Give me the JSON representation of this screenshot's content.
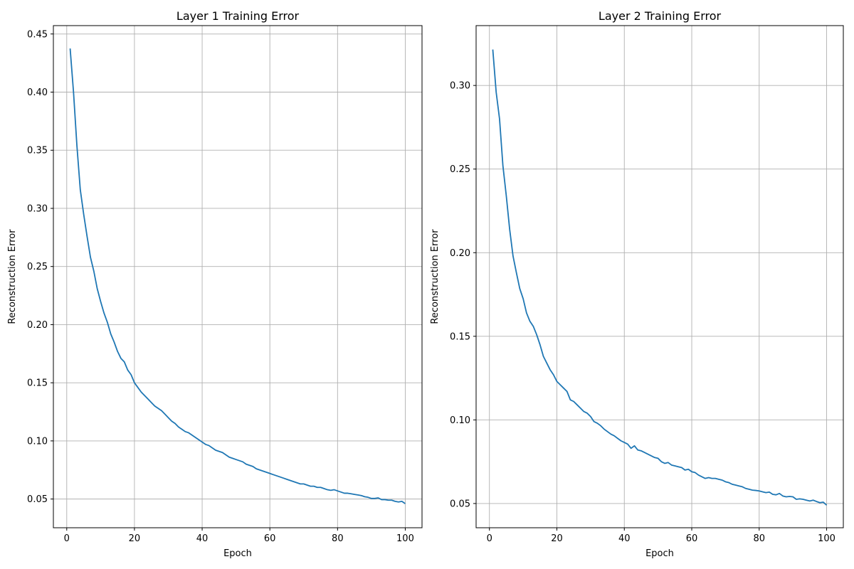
{
  "chart_data": [
    {
      "type": "line",
      "title": "Layer 1 Training Error",
      "xlabel": "Epoch",
      "ylabel": "Reconstruction Error",
      "xlim": [
        -3.95,
        104.95
      ],
      "ylim": [
        0.0253,
        0.4572
      ],
      "xticks": [
        0,
        20,
        40,
        60,
        80,
        100
      ],
      "yticks": [
        0.05,
        0.1,
        0.15,
        0.2,
        0.25,
        0.3,
        0.35,
        0.4,
        0.45
      ],
      "grid": true,
      "color": "#1f77b4",
      "x_start": 1,
      "values": [
        0.4375,
        0.4,
        0.354,
        0.316,
        0.295,
        0.276,
        0.258,
        0.246,
        0.231,
        0.22,
        0.21,
        0.202,
        0.192,
        0.185,
        0.177,
        0.171,
        0.168,
        0.161,
        0.157,
        0.15,
        0.146,
        0.142,
        0.139,
        0.136,
        0.133,
        0.13,
        0.128,
        0.126,
        0.123,
        0.12,
        0.117,
        0.115,
        0.112,
        0.11,
        0.108,
        0.107,
        0.105,
        0.103,
        0.101,
        0.099,
        0.097,
        0.096,
        0.094,
        0.092,
        0.091,
        0.09,
        0.088,
        0.086,
        0.085,
        0.084,
        0.083,
        0.082,
        0.08,
        0.079,
        0.078,
        0.076,
        0.075,
        0.074,
        0.073,
        0.072,
        0.071,
        0.07,
        0.069,
        0.068,
        0.067,
        0.066,
        0.065,
        0.064,
        0.063,
        0.063,
        0.062,
        0.061,
        0.061,
        0.06,
        0.06,
        0.059,
        0.058,
        0.0575,
        0.058,
        0.057,
        0.056,
        0.055,
        0.055,
        0.0545,
        0.054,
        0.0535,
        0.053,
        0.052,
        0.0515,
        0.0505,
        0.0505,
        0.051,
        0.0495,
        0.0495,
        0.049,
        0.049,
        0.048,
        0.0475,
        0.048,
        0.046
      ]
    },
    {
      "type": "line",
      "title": "Layer 2 Training Error",
      "xlabel": "Epoch",
      "ylabel": "Reconstruction Error",
      "xlim": [
        -3.95,
        104.95
      ],
      "ylim": [
        0.0355,
        0.3358
      ],
      "xticks": [
        0,
        20,
        40,
        60,
        80,
        100
      ],
      "yticks": [
        0.05,
        0.1,
        0.15,
        0.2,
        0.25,
        0.3
      ],
      "grid": true,
      "color": "#1f77b4",
      "x_start": 1,
      "values": [
        0.3215,
        0.296,
        0.28,
        0.252,
        0.234,
        0.214,
        0.198,
        0.188,
        0.1785,
        0.1725,
        0.164,
        0.159,
        0.156,
        0.151,
        0.145,
        0.138,
        0.134,
        0.13,
        0.127,
        0.123,
        0.121,
        0.119,
        0.117,
        0.112,
        0.111,
        0.109,
        0.107,
        0.105,
        0.104,
        0.102,
        0.099,
        0.098,
        0.0965,
        0.0945,
        0.093,
        0.0915,
        0.0905,
        0.089,
        0.0875,
        0.0865,
        0.0855,
        0.083,
        0.0845,
        0.082,
        0.0815,
        0.0805,
        0.0795,
        0.0785,
        0.0775,
        0.077,
        0.075,
        0.074,
        0.0745,
        0.073,
        0.0725,
        0.072,
        0.0715,
        0.07,
        0.0705,
        0.069,
        0.0685,
        0.067,
        0.066,
        0.065,
        0.0655,
        0.065,
        0.065,
        0.0645,
        0.064,
        0.063,
        0.0625,
        0.0615,
        0.061,
        0.0605,
        0.06,
        0.059,
        0.0585,
        0.058,
        0.0578,
        0.0575,
        0.057,
        0.0565,
        0.0568,
        0.0555,
        0.0552,
        0.056,
        0.0545,
        0.054,
        0.0542,
        0.054,
        0.0525,
        0.0528,
        0.0525,
        0.052,
        0.0515,
        0.052,
        0.0512,
        0.0505,
        0.0508,
        0.049
      ]
    }
  ]
}
